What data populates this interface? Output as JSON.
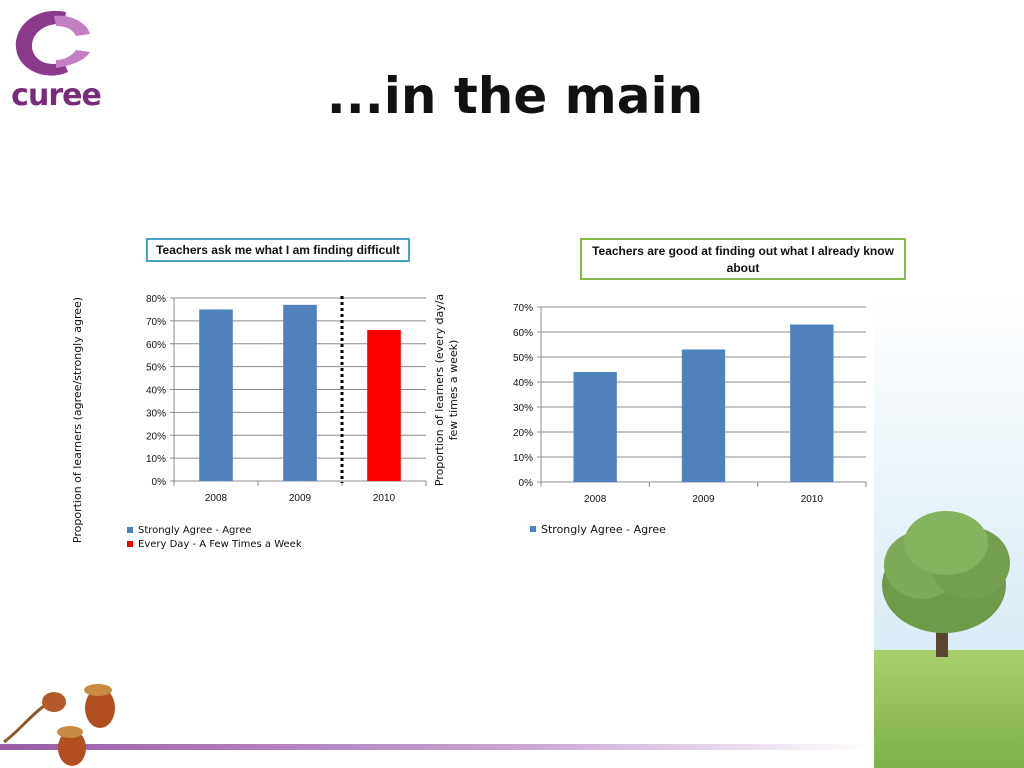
{
  "header": {
    "logo_text": "curee",
    "title": "...in the main"
  },
  "colors": {
    "blue": "#4f81bd",
    "red": "#ff0000",
    "logo_purple": "#7a2a7a"
  },
  "chart_data": [
    {
      "type": "bar",
      "title": "Teachers ask me what I am finding difficult",
      "ylabel": "Proportion of learners (agree/strongly agree)",
      "xlabel": "",
      "categories": [
        "2008",
        "2009",
        "2010"
      ],
      "ylim": [
        0,
        80
      ],
      "yticks": [
        "0%",
        "10%",
        "20%",
        "30%",
        "40%",
        "50%",
        "60%",
        "70%",
        "80%"
      ],
      "series": [
        {
          "name": "Strongly Agree - Agree",
          "color": "#4f81bd",
          "values": [
            75,
            77,
            null
          ]
        },
        {
          "name": "Every Day - A Few Times a Week",
          "color": "#ff0000",
          "values": [
            null,
            null,
            66
          ]
        }
      ],
      "grid": true,
      "legend_position": "bottom-left",
      "annotation": "dotted vertical divider between 2009 and 2010"
    },
    {
      "type": "bar",
      "title": "Teachers are good at finding out what I already know about",
      "ylabel": "Proportion of learners (every day/a few times a week)",
      "xlabel": "",
      "categories": [
        "2008",
        "2009",
        "2010"
      ],
      "ylim": [
        0,
        70
      ],
      "yticks": [
        "0%",
        "10%",
        "20%",
        "30%",
        "40%",
        "50%",
        "60%",
        "70%"
      ],
      "series": [
        {
          "name": "Strongly Agree - Agree",
          "color": "#4f81bd",
          "values": [
            44,
            53,
            63
          ]
        }
      ],
      "grid": true,
      "legend_position": "bottom-left"
    }
  ]
}
